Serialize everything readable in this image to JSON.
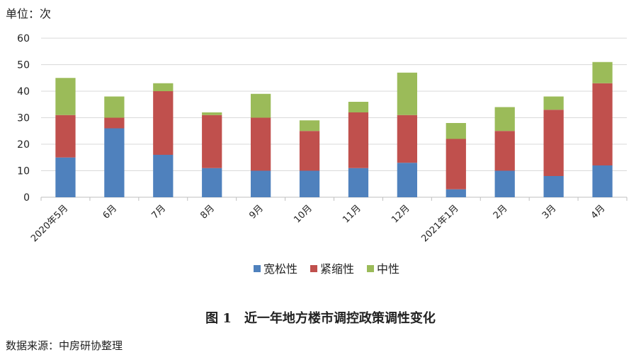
{
  "unit_label": "单位：次",
  "caption": "图 1　近一年地方楼市调控政策调性变化",
  "source": "数据来源：中房研协整理",
  "chart_data": {
    "type": "bar",
    "stacked": true,
    "categories": [
      "2020年5月",
      "6月",
      "7月",
      "8月",
      "9月",
      "10月",
      "11月",
      "12月",
      "2021年1月",
      "2月",
      "3月",
      "4月"
    ],
    "series": [
      {
        "name": "宽松性",
        "color": "#4f81bd",
        "values": [
          15,
          26,
          16,
          11,
          10,
          10,
          11,
          13,
          3,
          10,
          8,
          12
        ]
      },
      {
        "name": "紧缩性",
        "color": "#c0504d",
        "values": [
          16,
          4,
          24,
          20,
          20,
          15,
          21,
          18,
          19,
          15,
          25,
          31
        ]
      },
      {
        "name": "中性",
        "color": "#9bbb59",
        "values": [
          14,
          8,
          3,
          1,
          9,
          4,
          4,
          16,
          6,
          9,
          5,
          8
        ]
      }
    ],
    "ylim": [
      0,
      60
    ],
    "yticks": [
      0,
      10,
      20,
      30,
      40,
      50,
      60
    ],
    "grid": true,
    "legend": "bottom"
  }
}
